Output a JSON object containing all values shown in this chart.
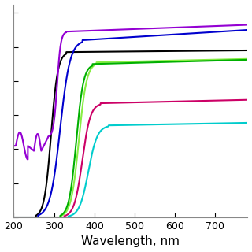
{
  "xlabel": "Wavelength, nm",
  "xlim": [
    200,
    780
  ],
  "ylim": [
    0,
    1.25
  ],
  "x_ticks": [
    200,
    300,
    400,
    500,
    600,
    700
  ],
  "curves": [
    {
      "color": "#9400d3",
      "name": "purple"
    },
    {
      "color": "#000000",
      "name": "black"
    },
    {
      "color": "#0000cd",
      "name": "dark_blue"
    },
    {
      "color": "#00b000",
      "name": "green"
    },
    {
      "color": "#cc0066",
      "name": "pink"
    },
    {
      "color": "#00cccc",
      "name": "cyan"
    },
    {
      "color": "#88ee44",
      "name": "light_green"
    }
  ],
  "background_color": "#ffffff",
  "tick_fontsize": 9,
  "label_fontsize": 11,
  "linewidth": 1.5
}
